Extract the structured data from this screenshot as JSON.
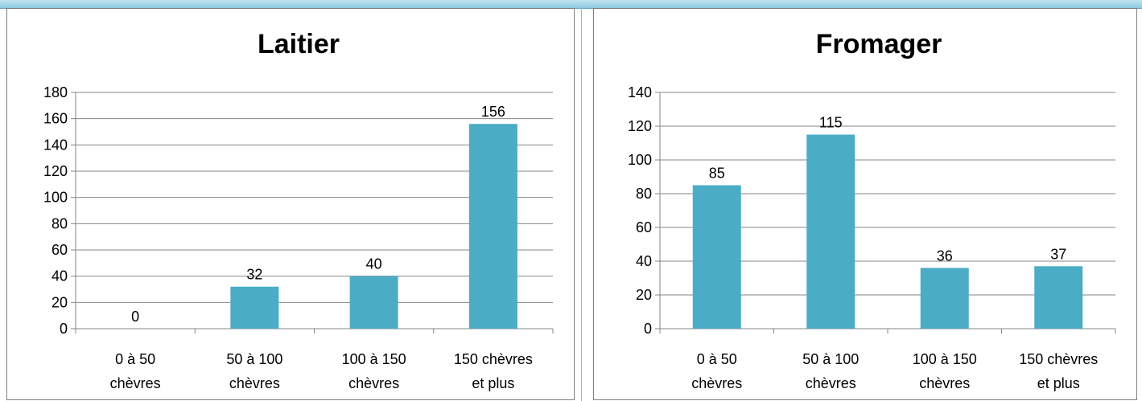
{
  "accent_color": "#4bacc6",
  "chart_data": [
    {
      "type": "bar",
      "title": "Laitier",
      "categories": [
        [
          "0 à 50",
          "chèvres"
        ],
        [
          "50 à 100",
          "chèvres"
        ],
        [
          "100 à 150",
          "chèvres"
        ],
        [
          "150 chèvres",
          "et plus"
        ]
      ],
      "values": [
        0,
        32,
        40,
        156
      ],
      "data_labels": [
        "0",
        "32",
        "40",
        "156"
      ],
      "yticks": [
        "0",
        "20",
        "40",
        "60",
        "80",
        "100",
        "120",
        "140",
        "160",
        "180"
      ],
      "ylim": [
        0,
        180
      ],
      "grid": true,
      "legend": "none",
      "bar_color": "#4bacc6"
    },
    {
      "type": "bar",
      "title": "Fromager",
      "categories": [
        [
          "0 à 50",
          "chèvres"
        ],
        [
          "50 à 100",
          "chèvres"
        ],
        [
          "100 à 150",
          "chèvres"
        ],
        [
          "150 chèvres",
          "et plus"
        ]
      ],
      "values": [
        85,
        115,
        36,
        37
      ],
      "data_labels": [
        "85",
        "115",
        "36",
        "37"
      ],
      "yticks": [
        "0",
        "20",
        "40",
        "60",
        "80",
        "100",
        "120",
        "140"
      ],
      "ylim": [
        0,
        140
      ],
      "grid": true,
      "legend": "none",
      "bar_color": "#4bacc6"
    }
  ]
}
